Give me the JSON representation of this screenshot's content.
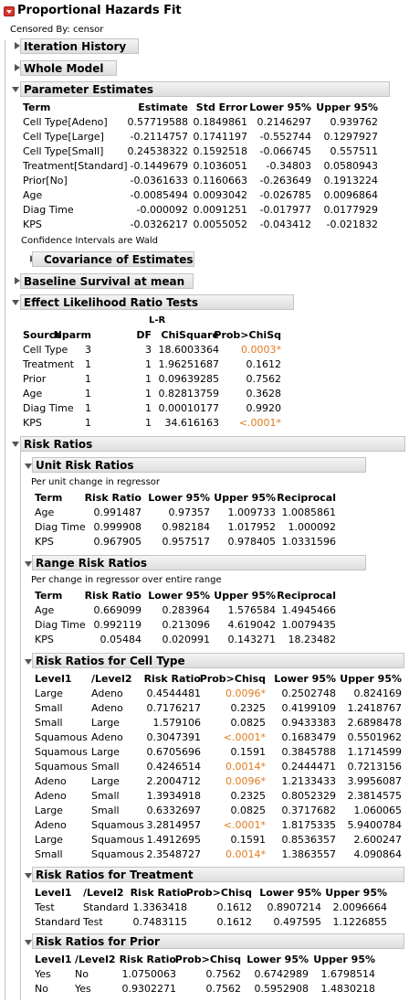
{
  "title": "Proportional Hazards Fit",
  "censored_by": "Censored By: censor",
  "sections": {
    "iteration_history": "Iteration History",
    "whole_model": "Whole Model",
    "parameter_estimates": "Parameter Estimates",
    "covariance": "Covariance of Estimates",
    "baseline": "Baseline Survival at mean",
    "lr_tests": "Effect Likelihood Ratio Tests",
    "risk_ratios": "Risk Ratios",
    "unit_rr": "Unit Risk Ratios",
    "range_rr": "Range Risk Ratios",
    "rr_cell": "Risk Ratios for Cell Type",
    "rr_treatment": "Risk Ratios for Treatment",
    "rr_prior": "Risk Ratios for Prior"
  },
  "pe": {
    "headers": [
      "Term",
      "Estimate",
      "Std Error",
      "Lower 95%",
      "Upper 95%"
    ],
    "rows": [
      [
        "Cell Type[Adeno]",
        "0.57719588",
        "0.1849861",
        "0.2146297",
        "0.939762"
      ],
      [
        "Cell Type[Large]",
        "-0.2114757",
        "0.1741197",
        "-0.552744",
        "0.1297927"
      ],
      [
        "Cell Type[Small]",
        "0.24538322",
        "0.1592518",
        "-0.066745",
        "0.557511"
      ],
      [
        "Treatment[Standard]",
        "-0.1449679",
        "0.1036051",
        "-0.34803",
        "0.0580943"
      ],
      [
        "Prior[No]",
        "-0.0361633",
        "0.1160663",
        "-0.263649",
        "0.1913224"
      ],
      [
        "Age",
        "-0.0085494",
        "0.0093042",
        "-0.026785",
        "0.0096864"
      ],
      [
        "Diag Time",
        "-0.000092",
        "0.0091251",
        "-0.017977",
        "0.0177929"
      ],
      [
        "KPS",
        "-0.0326217",
        "0.0055052",
        "-0.043412",
        "-0.021832"
      ]
    ],
    "note": "Confidence Intervals are Wald"
  },
  "lr": {
    "headers": [
      "Source",
      "Nparm",
      "DF",
      "ChiSquare",
      "Prob>ChiSq"
    ],
    "lr_label": "L-R",
    "rows": [
      [
        "Cell Type",
        "3",
        "3",
        "18.6003364",
        "0.0003*"
      ],
      [
        "Treatment",
        "1",
        "1",
        "1.96251687",
        "0.1612"
      ],
      [
        "Prior",
        "1",
        "1",
        "0.09639285",
        "0.7562"
      ],
      [
        "Age",
        "1",
        "1",
        "0.82813759",
        "0.3628"
      ],
      [
        "Diag Time",
        "1",
        "1",
        "0.00010177",
        "0.9920"
      ],
      [
        "KPS",
        "1",
        "1",
        "34.616163",
        "<.0001*"
      ]
    ]
  },
  "unit": {
    "note": "Per unit change in regressor",
    "headers": [
      "Term",
      "Risk Ratio",
      "Lower 95%",
      "Upper 95%",
      "Reciprocal"
    ],
    "rows": [
      [
        "Age",
        "0.991487",
        "0.97357",
        "1.009733",
        "1.0085861"
      ],
      [
        "Diag Time",
        "0.999908",
        "0.982184",
        "1.017952",
        "1.000092"
      ],
      [
        "KPS",
        "0.967905",
        "0.957517",
        "0.978405",
        "1.0331596"
      ]
    ]
  },
  "range": {
    "note": "Per change in regressor over entire range",
    "headers": [
      "Term",
      "Risk Ratio",
      "Lower 95%",
      "Upper 95%",
      "Reciprocal"
    ],
    "rows": [
      [
        "Age",
        "0.669099",
        "0.283964",
        "1.576584",
        "1.4945466"
      ],
      [
        "Diag Time",
        "0.992119",
        "0.213096",
        "4.619042",
        "1.0079435"
      ],
      [
        "KPS",
        "0.05484",
        "0.020991",
        "0.143271",
        "18.23482"
      ]
    ]
  },
  "cell": {
    "headers": [
      "Level1",
      "/Level2",
      "Risk Ratio",
      "Prob>Chisq",
      "Lower 95%",
      "Upper 95%"
    ],
    "rows": [
      [
        "Large",
        "Adeno",
        "0.4544481",
        "0.0096*",
        "0.2502748",
        "0.824169"
      ],
      [
        "Small",
        "Adeno",
        "0.7176217",
        "0.2325",
        "0.4199109",
        "1.2418767"
      ],
      [
        "Small",
        "Large",
        "1.579106",
        "0.0825",
        "0.9433383",
        "2.6898478"
      ],
      [
        "Squamous",
        "Adeno",
        "0.3047391",
        "<.0001*",
        "0.1683479",
        "0.5501962"
      ],
      [
        "Squamous",
        "Large",
        "0.6705696",
        "0.1591",
        "0.3845788",
        "1.1714599"
      ],
      [
        "Squamous",
        "Small",
        "0.4246514",
        "0.0014*",
        "0.2444471",
        "0.7213156"
      ],
      [
        "Adeno",
        "Large",
        "2.2004712",
        "0.0096*",
        "1.2133433",
        "3.9956087"
      ],
      [
        "Adeno",
        "Small",
        "1.3934918",
        "0.2325",
        "0.8052329",
        "2.3814575"
      ],
      [
        "Large",
        "Small",
        "0.6332697",
        "0.0825",
        "0.3717682",
        "1.060065"
      ],
      [
        "Adeno",
        "Squamous",
        "3.2814957",
        "<.0001*",
        "1.8175335",
        "5.9400784"
      ],
      [
        "Large",
        "Squamous",
        "1.4912695",
        "0.1591",
        "0.8536357",
        "2.600247"
      ],
      [
        "Small",
        "Squamous",
        "2.3548727",
        "0.0014*",
        "1.3863557",
        "4.090864"
      ]
    ]
  },
  "treat": {
    "headers": [
      "Level1",
      "/Level2",
      "Risk Ratio",
      "Prob>Chisq",
      "Lower 95%",
      "Upper 95%"
    ],
    "rows": [
      [
        "Test",
        "Standard",
        "1.3363418",
        "0.1612",
        "0.8907214",
        "2.0096664"
      ],
      [
        "Standard",
        "Test",
        "0.7483115",
        "0.1612",
        "0.497595",
        "1.1226855"
      ]
    ]
  },
  "prior": {
    "headers": [
      "Level1",
      "/Level2",
      "Risk Ratio",
      "Prob>Chisq",
      "Lower 95%",
      "Upper 95%"
    ],
    "rows": [
      [
        "Yes",
        "No",
        "1.0750063",
        "0.7562",
        "0.6742989",
        "1.6798514"
      ],
      [
        "No",
        "Yes",
        "0.9302271",
        "0.7562",
        "0.5952908",
        "1.4830218"
      ]
    ]
  },
  "colors": {
    "significant": "#e07a1f",
    "header_bg": "#e6e6e6"
  }
}
